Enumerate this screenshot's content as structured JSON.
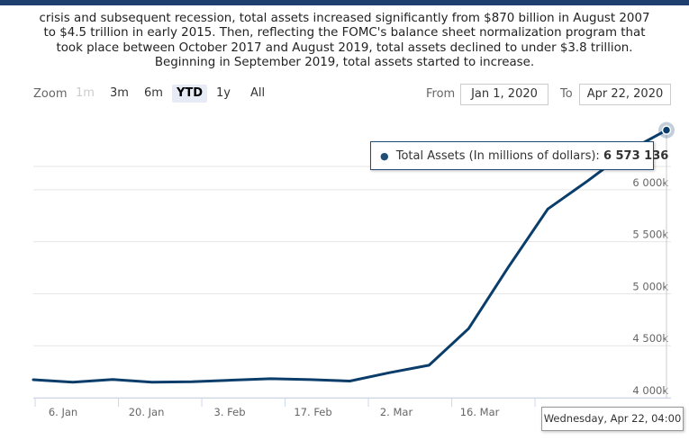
{
  "description": "crisis and subsequent recession, total assets increased significantly from $870 billion in August 2007 to $4.5 trillion in early 2015. Then, reflecting the FOMC's balance sheet normalization program that took place between October 2017 and August 2019, total assets declined to under $3.8 trillion. Beginning in September 2019, total assets started to increase.",
  "zoom": {
    "label": "Zoom",
    "buttons": [
      {
        "label": "1m",
        "state": "disabled"
      },
      {
        "label": "3m",
        "state": "normal"
      },
      {
        "label": "6m",
        "state": "normal"
      },
      {
        "label": "YTD",
        "state": "active"
      },
      {
        "label": "1y",
        "state": "normal"
      },
      {
        "label": "All",
        "state": "normal"
      }
    ]
  },
  "range": {
    "from_label": "From",
    "from_value": "Jan 1, 2020",
    "to_label": "To",
    "to_value": "Apr 22, 2020"
  },
  "tooltip": {
    "series_label": "Total Assets (In millions of dollars):",
    "value": "6 573 136"
  },
  "crosshair_label": "Wednesday, Apr 22, 04:00",
  "colors": {
    "line": "#0b3d6b",
    "tooltip_border": "#1f4e79",
    "gridline": "#e6e6e6"
  },
  "chart_data": {
    "type": "line",
    "title": "",
    "xlabel": "",
    "ylabel": "",
    "x_range": [
      "2020-01-01",
      "2020-04-22"
    ],
    "ylim": [
      4000000,
      6700000
    ],
    "y_ticks": [
      {
        "value": 4000000,
        "label": "4 000k"
      },
      {
        "value": 4500000,
        "label": "4 500k"
      },
      {
        "value": 5000000,
        "label": "5 000k"
      },
      {
        "value": 5500000,
        "label": "5 500k"
      },
      {
        "value": 6000000,
        "label": "6 000k"
      }
    ],
    "x_ticks": [
      {
        "date": "2020-01-06",
        "label": "6. Jan"
      },
      {
        "date": "2020-01-20",
        "label": "20. Jan"
      },
      {
        "date": "2020-02-03",
        "label": "3. Feb"
      },
      {
        "date": "2020-02-17",
        "label": "17. Feb"
      },
      {
        "date": "2020-03-02",
        "label": "2. Mar"
      },
      {
        "date": "2020-03-16",
        "label": "16. Mar"
      },
      {
        "date": "2020-03-30",
        "label": "30. Mar"
      }
    ],
    "series": [
      {
        "name": "Total Assets (In millions of dollars)",
        "points": [
          {
            "x": "2020-01-01",
            "y": 4173000
          },
          {
            "x": "2020-01-08",
            "y": 4150000
          },
          {
            "x": "2020-01-15",
            "y": 4176000
          },
          {
            "x": "2020-01-22",
            "y": 4150000
          },
          {
            "x": "2020-01-29",
            "y": 4154000
          },
          {
            "x": "2020-02-05",
            "y": 4169000
          },
          {
            "x": "2020-02-12",
            "y": 4183000
          },
          {
            "x": "2020-02-19",
            "y": 4174000
          },
          {
            "x": "2020-02-26",
            "y": 4160000
          },
          {
            "x": "2020-03-04",
            "y": 4241000
          },
          {
            "x": "2020-03-11",
            "y": 4312000
          },
          {
            "x": "2020-03-18",
            "y": 4665000
          },
          {
            "x": "2020-03-25",
            "y": 5254000
          },
          {
            "x": "2020-04-01",
            "y": 5815000
          },
          {
            "x": "2020-04-08",
            "y": 6083000
          },
          {
            "x": "2020-04-15",
            "y": 6367000
          },
          {
            "x": "2020-04-22",
            "y": 6573136
          }
        ]
      }
    ],
    "grid": true
  }
}
